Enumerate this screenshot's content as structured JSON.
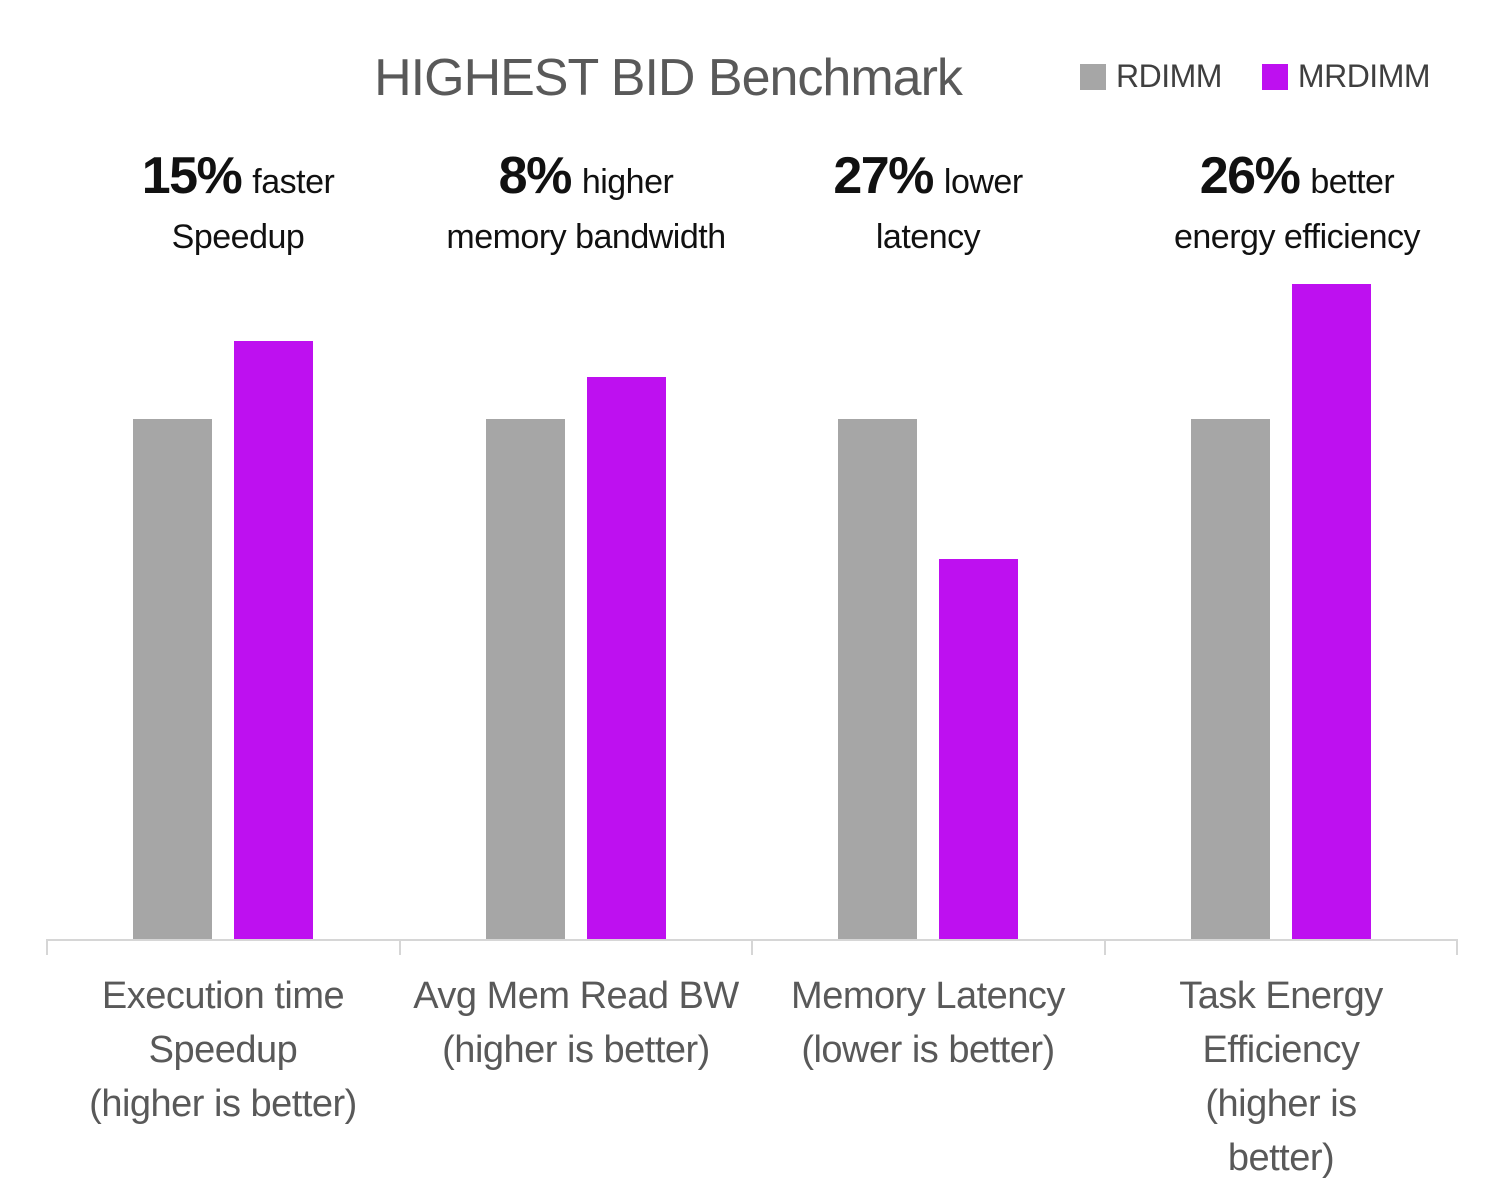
{
  "title": "HIGHEST BID Benchmark",
  "legend": [
    {
      "label": "RDIMM",
      "color": "#A6A6A6"
    },
    {
      "label": "MRDIMM",
      "color": "#BE10F0"
    }
  ],
  "colors": {
    "rdimm_bar": "#A6A6A6",
    "mrdimm_bar": "#BE10F0",
    "axis_line": "#D6D6D6",
    "title_text": "#595959",
    "label_text": "#595959",
    "legend_text": "#3F3F3F",
    "annotation_text": "#111111"
  },
  "chart_data": {
    "type": "bar",
    "title": "HIGHEST BID Benchmark",
    "categories": [
      "Execution time\nSpeedup\n(higher is better)",
      "Avg Mem Read BW\n(higher is better)",
      "Memory Latency\n(lower is better)",
      "Task Energy\nEfficiency\n(higher is better)"
    ],
    "series": [
      {
        "name": "RDIMM",
        "color": "#A6A6A6",
        "values": [
          1.0,
          1.0,
          1.0,
          1.0
        ]
      },
      {
        "name": "MRDIMM",
        "color": "#BE10F0",
        "values": [
          1.15,
          1.08,
          0.73,
          1.26
        ]
      }
    ],
    "units": "relative to RDIMM = 1.0",
    "annotations": [
      {
        "pct": "15%",
        "suffix": "faster",
        "line2": "Speedup"
      },
      {
        "pct": "8%",
        "suffix": "higher",
        "line2": "memory  bandwidth"
      },
      {
        "pct": "27%",
        "suffix": "lower",
        "line2": "latency"
      },
      {
        "pct": "26%",
        "suffix": "better",
        "line2": "energy efficiency"
      }
    ],
    "layout": {
      "grid": false,
      "value_axis": "hidden",
      "legend_position": "top-right"
    }
  }
}
